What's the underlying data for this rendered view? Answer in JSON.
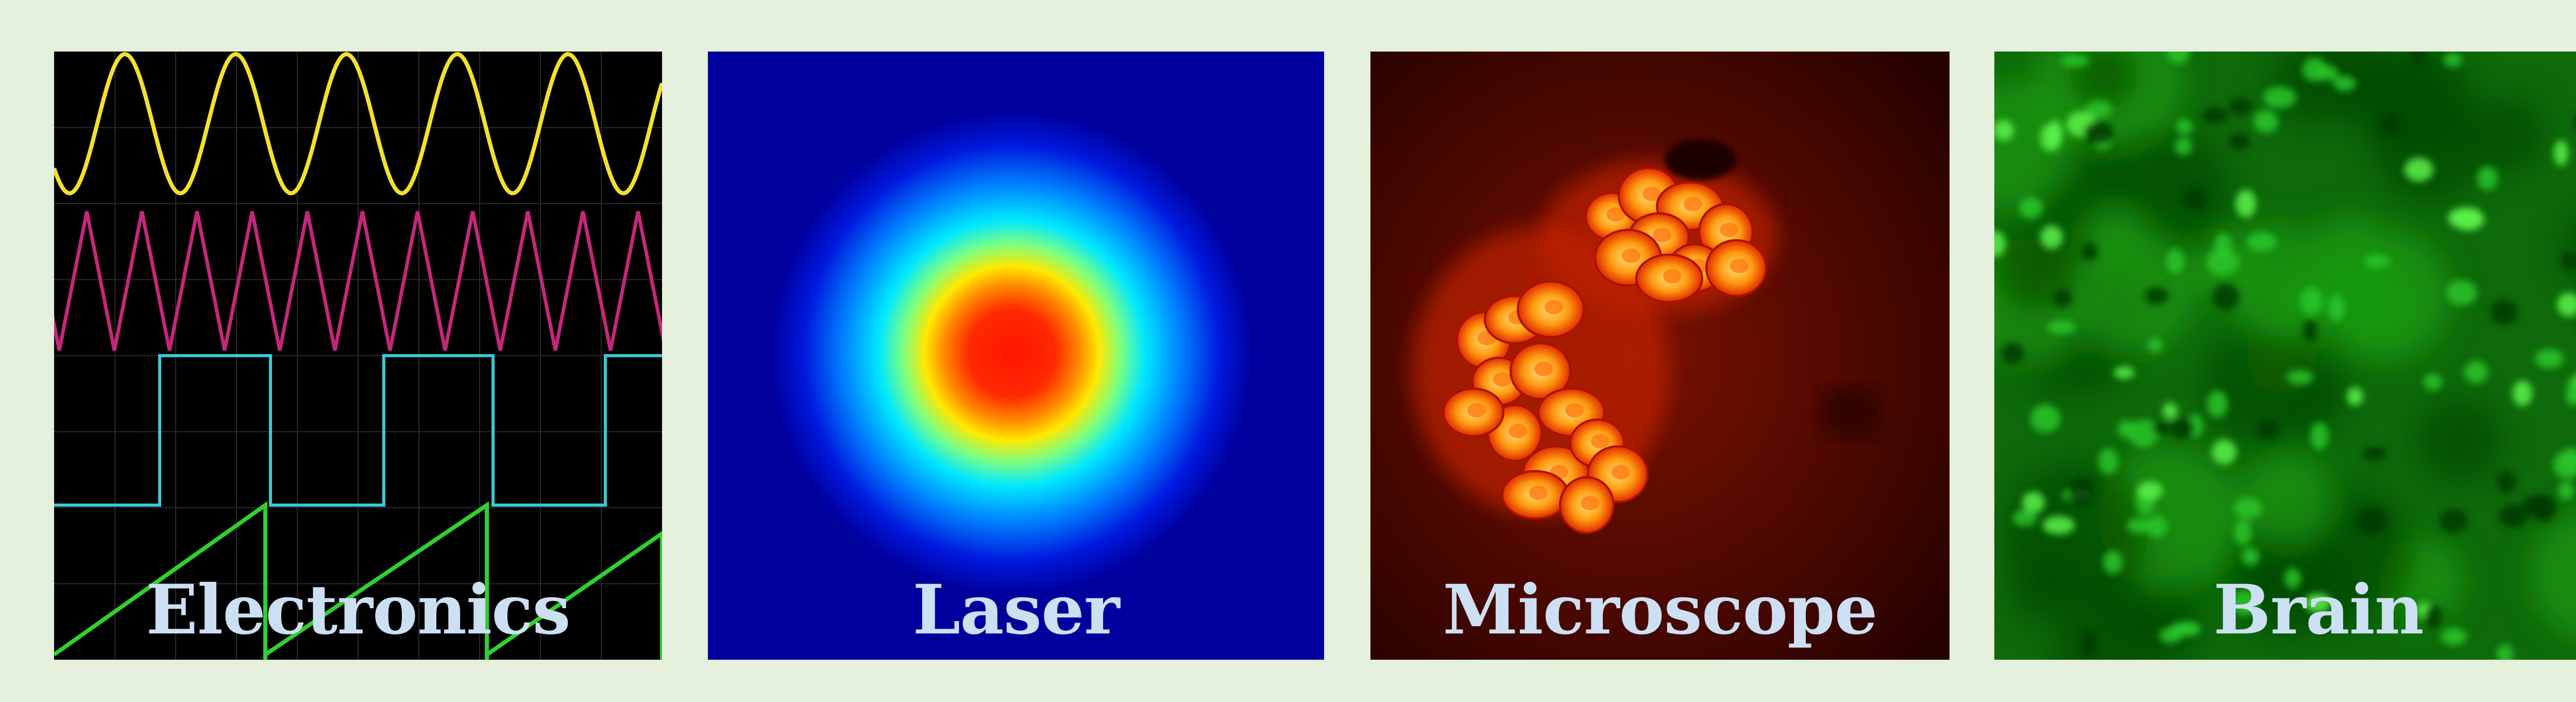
{
  "panels": [
    {
      "id": "electronics",
      "label": "Electronics"
    },
    {
      "id": "laser",
      "label": "Laser"
    },
    {
      "id": "microscope",
      "label": "Microscope"
    },
    {
      "id": "brain",
      "label": "Brain"
    }
  ],
  "colors": {
    "page_background": "#e4efdc",
    "label_text": "#cddff3",
    "sine": "#f2e12a",
    "triangle": "#c4277a",
    "square": "#38c9d6",
    "sawtooth": "#2fd02f",
    "laser_bg": "#00009c",
    "brain_green": "#18a81a"
  },
  "icons": {
    "electronics": "oscilloscope-traces-image",
    "laser": "laser-beam-profile-image",
    "microscope": "fluorescent-cell-cluster-image",
    "brain": "fluorescent-neurons-image"
  }
}
